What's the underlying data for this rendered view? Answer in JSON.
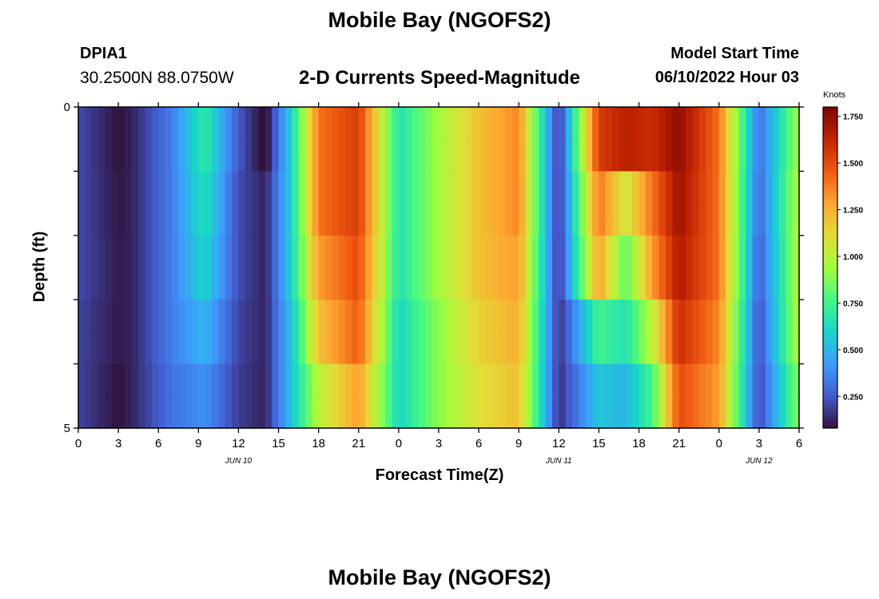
{
  "header": {
    "title": "Mobile Bay (NGOFS2)",
    "station": "DPIA1",
    "coordinates": "30.2500N  88.0750W",
    "subtitle": "2-D Currents Speed-Magnitude",
    "model_start_label": "Model Start Time",
    "model_start_value": "06/10/2022 Hour 03"
  },
  "footer": {
    "title_repeat": "Mobile Bay (NGOFS2)"
  },
  "chart_data": {
    "type": "heatmap",
    "xlabel": "Forecast Time(Z)",
    "ylabel": "Depth (ft)",
    "x_unit": "hours from Jun 10 00Z",
    "xlim": [
      0,
      54
    ],
    "ylim": [
      0,
      5
    ],
    "x_ticks": [
      0,
      3,
      6,
      9,
      12,
      15,
      18,
      21,
      24,
      27,
      30,
      33,
      36,
      39,
      42,
      45,
      48,
      51,
      54
    ],
    "x_tick_labels": [
      "0",
      "3",
      "6",
      "9",
      "12",
      "15",
      "18",
      "21",
      "0",
      "3",
      "6",
      "9",
      "12",
      "15",
      "18",
      "21",
      "0",
      "3",
      "6"
    ],
    "y_ticks": [
      0,
      5
    ],
    "y_tick_labels": [
      "0",
      "5"
    ],
    "date_labels": [
      {
        "x": 12,
        "label": "JUN 10"
      },
      {
        "x": 36,
        "label": "JUN 11"
      },
      {
        "x": 51,
        "label": "JUN 12"
      }
    ],
    "depth_layers": [
      0.25,
      0.75,
      1.25,
      1.75,
      2.25,
      2.75,
      3.25,
      3.75,
      4.25,
      4.75
    ],
    "time_knots": [
      0,
      3,
      4,
      7,
      9.5,
      12,
      14,
      16,
      18,
      21,
      24,
      27,
      30,
      33,
      36,
      39,
      41,
      43,
      45,
      48,
      51,
      54
    ],
    "speed_knots": [
      [
        0.22,
        0.08,
        0.12,
        0.35,
        0.7,
        0.25,
        0.05,
        0.6,
        1.4,
        1.55,
        0.65,
        0.95,
        1.2,
        1.35,
        0.15,
        1.55,
        1.65,
        1.6,
        1.75,
        1.4,
        0.3,
        0.95
      ],
      [
        0.22,
        0.08,
        0.12,
        0.35,
        0.7,
        0.25,
        0.05,
        0.6,
        1.4,
        1.55,
        0.65,
        0.95,
        1.2,
        1.35,
        0.15,
        1.55,
        1.65,
        1.6,
        1.75,
        1.4,
        0.3,
        0.95
      ],
      [
        0.22,
        0.09,
        0.12,
        0.35,
        0.65,
        0.22,
        0.12,
        0.6,
        1.4,
        1.55,
        0.65,
        0.95,
        1.2,
        1.35,
        0.15,
        1.4,
        1.05,
        1.4,
        1.72,
        1.4,
        0.28,
        1.0
      ],
      [
        0.22,
        0.09,
        0.12,
        0.35,
        0.65,
        0.22,
        0.12,
        0.6,
        1.4,
        1.55,
        0.65,
        0.95,
        1.2,
        1.35,
        0.15,
        1.4,
        1.05,
        1.4,
        1.72,
        1.4,
        0.28,
        1.0
      ],
      [
        0.22,
        0.1,
        0.12,
        0.35,
        0.6,
        0.22,
        0.12,
        0.6,
        1.3,
        1.5,
        0.65,
        0.95,
        1.2,
        1.3,
        0.15,
        1.3,
        0.8,
        1.3,
        1.68,
        1.4,
        0.25,
        1.0
      ],
      [
        0.22,
        0.1,
        0.12,
        0.35,
        0.6,
        0.22,
        0.12,
        0.6,
        1.3,
        1.5,
        0.65,
        0.95,
        1.2,
        1.3,
        0.15,
        1.3,
        0.8,
        1.3,
        1.68,
        1.4,
        0.25,
        1.0
      ],
      [
        0.2,
        0.1,
        0.12,
        0.35,
        0.5,
        0.2,
        0.12,
        0.55,
        1.2,
        1.45,
        0.6,
        0.9,
        1.15,
        1.25,
        0.15,
        0.75,
        0.65,
        1.0,
        1.6,
        1.35,
        0.22,
        1.0
      ],
      [
        0.2,
        0.1,
        0.12,
        0.35,
        0.5,
        0.2,
        0.12,
        0.55,
        1.2,
        1.45,
        0.6,
        0.9,
        1.15,
        1.25,
        0.15,
        0.75,
        0.65,
        1.0,
        1.6,
        1.35,
        0.22,
        1.0
      ],
      [
        0.2,
        0.08,
        0.12,
        0.32,
        0.4,
        0.18,
        0.12,
        0.55,
        1.0,
        1.3,
        0.6,
        0.9,
        1.1,
        1.2,
        0.15,
        0.55,
        0.5,
        0.75,
        1.5,
        1.3,
        0.2,
        0.9
      ],
      [
        0.2,
        0.08,
        0.12,
        0.32,
        0.4,
        0.18,
        0.12,
        0.55,
        1.0,
        1.3,
        0.6,
        0.9,
        1.1,
        1.2,
        0.15,
        0.55,
        0.5,
        0.75,
        1.5,
        1.3,
        0.2,
        0.9
      ]
    ],
    "colorbar": {
      "title": "Knots",
      "range": [
        0.08,
        1.8
      ],
      "ticks": [
        1.75,
        1.5,
        1.25,
        1.0,
        0.75,
        0.5,
        0.25
      ],
      "tick_labels": [
        "1.750",
        "1.500",
        "1.250",
        "1.000",
        "0.750",
        "0.500",
        "0.250"
      ],
      "colormap": "turbo"
    }
  }
}
